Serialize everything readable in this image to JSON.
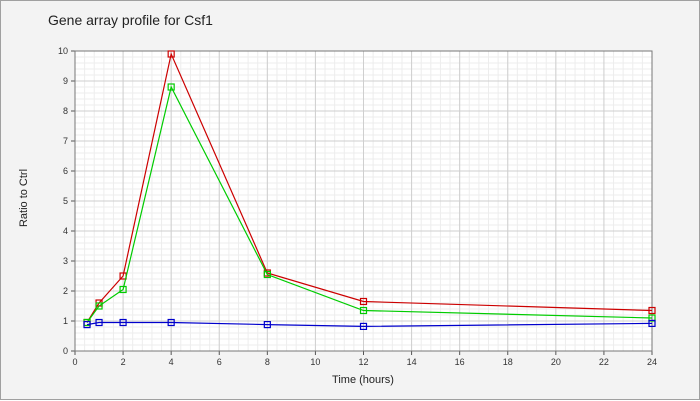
{
  "chart_data": {
    "type": "line",
    "title": "Gene array profile for Csf1",
    "xlabel": "Time (hours)",
    "ylabel": "Ratio to Ctrl",
    "xlim": [
      0,
      24
    ],
    "ylim": [
      0,
      10
    ],
    "xticks": [
      0,
      2,
      4,
      6,
      8,
      10,
      12,
      14,
      16,
      18,
      20,
      22,
      24
    ],
    "yticks": [
      0,
      1,
      2,
      3,
      4,
      5,
      6,
      7,
      8,
      9,
      10
    ],
    "grid": true,
    "legend": "none",
    "marker": "open-square",
    "series": [
      {
        "color": "#cc0000",
        "x": [
          0.5,
          1,
          2,
          4,
          8,
          12,
          24
        ],
        "y": [
          0.95,
          1.6,
          2.5,
          9.9,
          2.6,
          1.65,
          1.35
        ]
      },
      {
        "color": "#00cc00",
        "x": [
          0.5,
          1,
          2,
          4,
          8,
          12,
          24
        ],
        "y": [
          0.95,
          1.5,
          2.05,
          8.8,
          2.55,
          1.35,
          1.1
        ]
      },
      {
        "color": "#0000cc",
        "x": [
          0.5,
          1,
          2,
          4,
          8,
          12,
          24
        ],
        "y": [
          0.88,
          0.95,
          0.95,
          0.95,
          0.88,
          0.82,
          0.92
        ]
      }
    ]
  }
}
